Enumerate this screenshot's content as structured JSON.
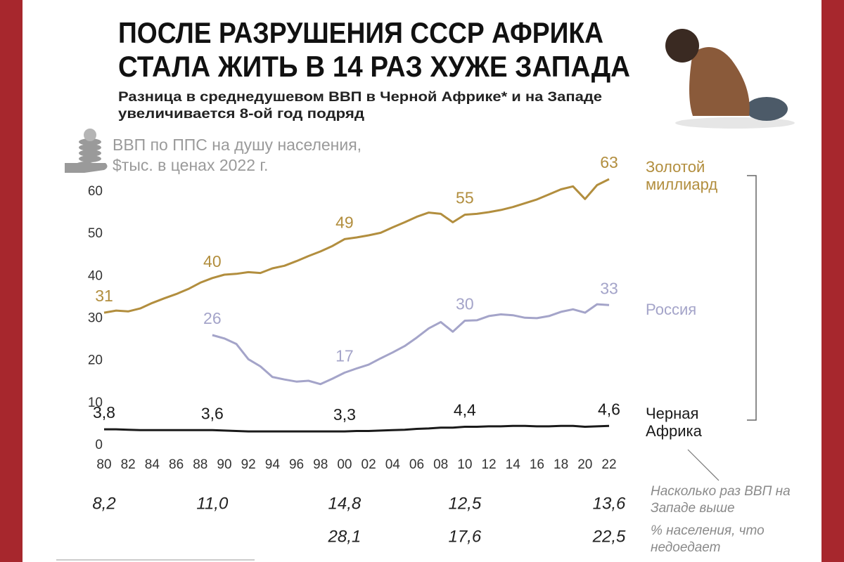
{
  "chart_data": {
    "type": "line",
    "title": [
      "ПОСЛЕ РАЗРУШЕНИЯ СССР АФРИКА",
      "СТАЛА ЖИТЬ В 14 РАЗ ХУЖЕ ЗАПАДА"
    ],
    "subtitle": [
      "Разница в среднедушевом ВВП в Черной Африке* и на Западе",
      "увеличивается 8-ой год подряд"
    ],
    "y_label": [
      "ВВП по ППС на душу населения,",
      "$тыс. в ценах 2022 г."
    ],
    "x": [
      1980,
      1981,
      1982,
      1983,
      1984,
      1985,
      1986,
      1987,
      1988,
      1989,
      1990,
      1991,
      1992,
      1993,
      1994,
      1995,
      1996,
      1997,
      1998,
      1999,
      2000,
      2001,
      2002,
      2003,
      2004,
      2005,
      2006,
      2007,
      2008,
      2009,
      2010,
      2011,
      2012,
      2013,
      2014,
      2015,
      2016,
      2017,
      2018,
      2019,
      2020,
      2021,
      2022
    ],
    "xlim": [
      1980,
      2022
    ],
    "xticks": [
      {
        "value": 1980,
        "label": "80"
      },
      {
        "value": 1982,
        "label": "82"
      },
      {
        "value": 1984,
        "label": "84"
      },
      {
        "value": 1986,
        "label": "86"
      },
      {
        "value": 1988,
        "label": "88"
      },
      {
        "value": 1990,
        "label": "90"
      },
      {
        "value": 1992,
        "label": "92"
      },
      {
        "value": 1994,
        "label": "94"
      },
      {
        "value": 1996,
        "label": "96"
      },
      {
        "value": 1998,
        "label": "98"
      },
      {
        "value": 2000,
        "label": "00"
      },
      {
        "value": 2002,
        "label": "02"
      },
      {
        "value": 2004,
        "label": "04"
      },
      {
        "value": 2006,
        "label": "06"
      },
      {
        "value": 2008,
        "label": "08"
      },
      {
        "value": 2010,
        "label": "10"
      },
      {
        "value": 2012,
        "label": "12"
      },
      {
        "value": 2014,
        "label": "14"
      },
      {
        "value": 2016,
        "label": "16"
      },
      {
        "value": 2018,
        "label": "18"
      },
      {
        "value": 2020,
        "label": "20"
      },
      {
        "value": 2022,
        "label": "22"
      }
    ],
    "ylim": [
      0,
      65
    ],
    "yticks": [
      0,
      10,
      20,
      30,
      40,
      50,
      60
    ],
    "grid": false,
    "series": [
      {
        "name": "Золотой миллиард",
        "color": "#b28e3e",
        "values": [
          31.4,
          31.9,
          31.7,
          32.4,
          33.7,
          34.8,
          35.8,
          37.0,
          38.5,
          39.6,
          40.4,
          40.6,
          41.0,
          40.8,
          41.9,
          42.5,
          43.6,
          44.8,
          45.9,
          47.2,
          48.8,
          49.2,
          49.7,
          50.3,
          51.6,
          52.8,
          54.1,
          55.1,
          54.8,
          52.8,
          54.6,
          54.8,
          55.2,
          55.7,
          56.4,
          57.3,
          58.2,
          59.4,
          60.6,
          61.3,
          58.3,
          61.6,
          63.0
        ],
        "value_labels": [
          "31",
          null,
          null,
          null,
          null,
          null,
          null,
          null,
          null,
          "40",
          null,
          null,
          null,
          null,
          null,
          null,
          null,
          null,
          null,
          null,
          "49",
          null,
          null,
          null,
          null,
          null,
          null,
          null,
          null,
          null,
          "55",
          null,
          null,
          null,
          null,
          null,
          null,
          null,
          null,
          null,
          null,
          null,
          "63"
        ]
      },
      {
        "name": "Россия",
        "color": "#a4a4c9",
        "values": [
          null,
          null,
          null,
          null,
          null,
          null,
          null,
          null,
          null,
          26.1,
          25.3,
          24.0,
          20.4,
          18.7,
          16.2,
          15.6,
          15.1,
          15.3,
          14.5,
          15.8,
          17.2,
          18.2,
          19.1,
          20.6,
          22.0,
          23.5,
          25.5,
          27.7,
          29.2,
          26.9,
          29.5,
          29.6,
          30.6,
          31.0,
          30.8,
          30.2,
          30.1,
          30.6,
          31.6,
          32.2,
          31.4,
          33.4,
          33.2
        ],
        "value_labels": [
          null,
          null,
          null,
          null,
          null,
          null,
          null,
          null,
          null,
          "26",
          null,
          null,
          null,
          null,
          null,
          null,
          null,
          null,
          null,
          null,
          "17",
          null,
          null,
          null,
          null,
          null,
          null,
          null,
          null,
          null,
          "30",
          null,
          null,
          null,
          null,
          null,
          null,
          null,
          null,
          null,
          null,
          null,
          "33"
        ]
      },
      {
        "name": "Черная Африка",
        "color": "#1a1a1a",
        "values": [
          3.8,
          3.8,
          3.7,
          3.6,
          3.6,
          3.6,
          3.6,
          3.6,
          3.6,
          3.6,
          3.5,
          3.4,
          3.3,
          3.3,
          3.3,
          3.3,
          3.3,
          3.3,
          3.3,
          3.3,
          3.3,
          3.4,
          3.4,
          3.5,
          3.6,
          3.7,
          3.9,
          4.0,
          4.2,
          4.2,
          4.4,
          4.4,
          4.5,
          4.5,
          4.6,
          4.6,
          4.5,
          4.5,
          4.6,
          4.6,
          4.4,
          4.5,
          4.6
        ],
        "value_labels": [
          "3,8",
          null,
          null,
          null,
          null,
          null,
          null,
          null,
          null,
          "3,6",
          null,
          null,
          null,
          null,
          null,
          null,
          null,
          null,
          null,
          null,
          "3,3",
          null,
          null,
          null,
          null,
          null,
          null,
          null,
          null,
          null,
          "4,4",
          null,
          null,
          null,
          null,
          null,
          null,
          null,
          null,
          null,
          null,
          null,
          "4,6"
        ]
      }
    ],
    "rows": [
      {
        "label": "Насколько раз ВВП на Западе выше",
        "x": [
          1980,
          1989,
          2000,
          2010,
          2022
        ],
        "values": [
          8.2,
          11.0,
          14.8,
          12.5,
          13.6
        ],
        "value_labels": [
          "8,2",
          "11,0",
          "14,8",
          "12,5",
          "13,6"
        ]
      },
      {
        "label": "% населения, что недоедает",
        "x": [
          2000,
          2010,
          2022
        ],
        "values": [
          28.1,
          17.6,
          22.5
        ],
        "value_labels": [
          "28,1",
          "17,6",
          "22,5"
        ]
      }
    ]
  }
}
